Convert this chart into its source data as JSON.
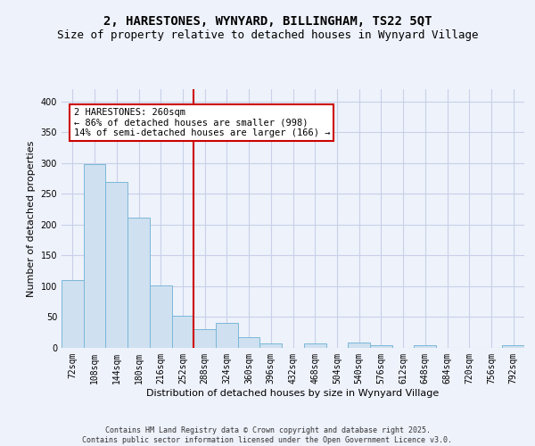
{
  "title_line1": "2, HARESTONES, WYNYARD, BILLINGHAM, TS22 5QT",
  "title_line2": "Size of property relative to detached houses in Wynyard Village",
  "xlabel": "Distribution of detached houses by size in Wynyard Village",
  "ylabel": "Number of detached properties",
  "footer": "Contains HM Land Registry data © Crown copyright and database right 2025.\nContains public sector information licensed under the Open Government Licence v3.0.",
  "bar_color": "#cfe0f0",
  "bar_edgecolor": "#7ab8d8",
  "vline_color": "#cc0000",
  "annotation_text": "2 HARESTONES: 260sqm\n← 86% of detached houses are smaller (998)\n14% of semi-detached houses are larger (166) →",
  "annotation_box_edgecolor": "#cc0000",
  "categories": [
    "72sqm",
    "108sqm",
    "144sqm",
    "180sqm",
    "216sqm",
    "252sqm",
    "288sqm",
    "324sqm",
    "360sqm",
    "396sqm",
    "432sqm",
    "468sqm",
    "504sqm",
    "540sqm",
    "576sqm",
    "612sqm",
    "648sqm",
    "684sqm",
    "720sqm",
    "756sqm",
    "792sqm"
  ],
  "values": [
    110,
    298,
    270,
    212,
    101,
    52,
    31,
    41,
    18,
    7,
    0,
    7,
    0,
    8,
    5,
    0,
    5,
    0,
    0,
    0,
    5
  ],
  "ylim": [
    0,
    420
  ],
  "yticks": [
    0,
    50,
    100,
    150,
    200,
    250,
    300,
    350,
    400
  ],
  "background_color": "#eef2fb",
  "plot_background": "#eef2fb",
  "grid_color": "#c8d0e8",
  "title_fontsize": 10,
  "subtitle_fontsize": 9,
  "ylabel_fontsize": 8,
  "xlabel_fontsize": 8,
  "tick_fontsize": 7,
  "footer_fontsize": 6,
  "annotation_fontsize": 7.5,
  "vline_pos": 5.5
}
